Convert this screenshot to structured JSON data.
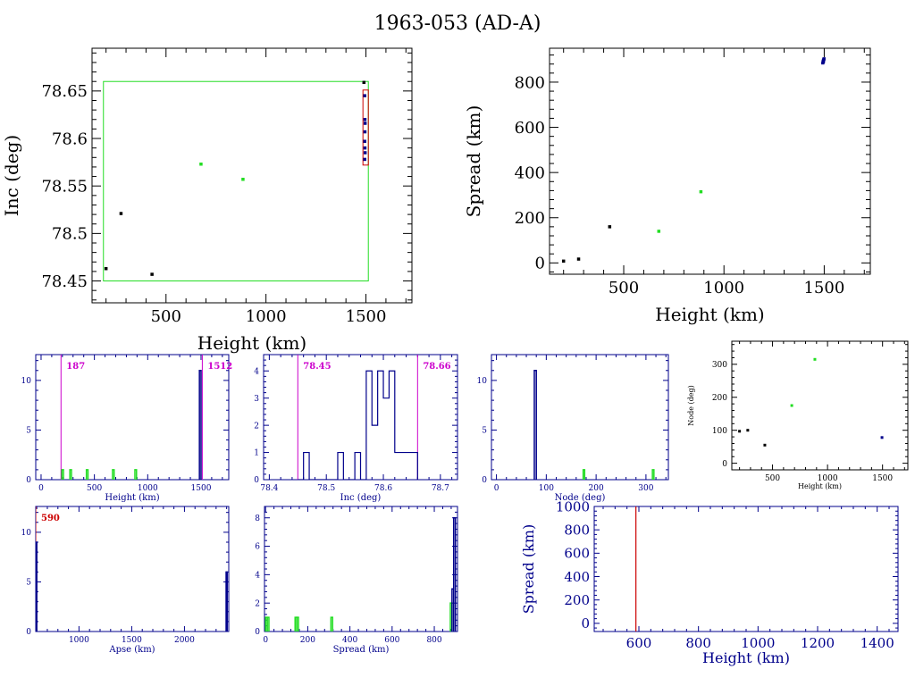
{
  "title": "1963-053 (AD-A)",
  "colors": {
    "black": "#000000",
    "green": "#22dd22",
    "blue": "#00008b",
    "magenta": "#cc00cc",
    "red": "#cc0000",
    "brightblue": "#0000ff"
  },
  "chart_data": [
    {
      "id": "inc-vs-height",
      "type": "scatter",
      "xlabel": "Height (km)",
      "ylabel": "Inc (deg)",
      "xlim": [
        130,
        1730
      ],
      "ylim": [
        78.427,
        78.695
      ],
      "xticks": [
        500,
        1000,
        1500
      ],
      "yticks": [
        78.45,
        78.5,
        78.55,
        78.6,
        78.65
      ],
      "ytick_labels": [
        "78.45",
        "78.5",
        "78.55",
        "78.6",
        "78.65"
      ],
      "series": [
        {
          "color": "black",
          "points": [
            [
              200,
              78.463
            ],
            [
              275,
              78.521
            ],
            [
              430,
              78.457
            ],
            [
              1490,
              78.659
            ]
          ]
        },
        {
          "color": "green",
          "points": [
            [
              675,
              78.573
            ],
            [
              885,
              78.557
            ]
          ]
        },
        {
          "color": "blue",
          "points": [
            [
              1494,
              78.645
            ],
            [
              1495,
              78.62
            ],
            [
              1496,
              78.616
            ],
            [
              1495,
              78.607
            ],
            [
              1494,
              78.597
            ],
            [
              1495,
              78.59
            ],
            [
              1496,
              78.585
            ],
            [
              1494,
              78.578
            ]
          ]
        }
      ],
      "boxes": [
        {
          "color": "green",
          "x": [
            187,
            1512
          ],
          "y": [
            78.45,
            78.66
          ]
        },
        {
          "color": "red",
          "x": [
            1485,
            1512
          ],
          "y": [
            78.572,
            78.651
          ]
        }
      ]
    },
    {
      "id": "spread-vs-height",
      "type": "scatter",
      "xlabel": "Height (km)",
      "ylabel": "Spread (km)",
      "xlim": [
        130,
        1730
      ],
      "ylim": [
        -50,
        950
      ],
      "xticks": [
        500,
        1000,
        1500
      ],
      "yticks": [
        0,
        200,
        400,
        600,
        800
      ],
      "series": [
        {
          "color": "black",
          "points": [
            [
              200,
              8
            ],
            [
              275,
              17
            ],
            [
              430,
              160
            ]
          ]
        },
        {
          "color": "green",
          "points": [
            [
              675,
              140
            ],
            [
              885,
              315
            ]
          ]
        },
        {
          "color": "blue",
          "points": [
            [
              1493,
              885
            ],
            [
              1495,
              893
            ],
            [
              1497,
              898
            ],
            [
              1499,
              903
            ],
            [
              1496,
              890
            ]
          ]
        }
      ]
    },
    {
      "id": "height-hist",
      "type": "bar",
      "xlabel": "Height (km)",
      "xlim": [
        -50,
        1760
      ],
      "ylim": [
        0,
        12.6
      ],
      "xticks": [
        0,
        500,
        1000,
        1500
      ],
      "yticks": [
        0,
        5,
        10
      ],
      "markers": [
        {
          "x": 187,
          "label": "187",
          "color": "magenta"
        },
        {
          "x": 1512,
          "label": "1512",
          "color": "magenta"
        }
      ],
      "series": [
        {
          "color": "green",
          "bars": [
            [
              195,
              210,
              1
            ],
            [
              270,
              285,
              1
            ],
            [
              425,
              440,
              1
            ],
            [
              670,
              685,
              1
            ],
            [
              880,
              895,
              1
            ]
          ]
        },
        {
          "color": "blue",
          "bars": [
            [
              1485,
              1500,
              11
            ]
          ]
        }
      ]
    },
    {
      "id": "inc-hist",
      "type": "bar",
      "xlabel": "Inc (deg)",
      "xlim": [
        78.39,
        78.73
      ],
      "ylim": [
        0,
        4.6
      ],
      "xticks": [
        78.4,
        78.5,
        78.6,
        78.7
      ],
      "yticks": [
        0,
        1,
        2,
        3,
        4
      ],
      "xtick_labels": [
        "78.4",
        "78.5",
        "78.6",
        "78.7"
      ],
      "markers": [
        {
          "x": 78.45,
          "label": "78.45",
          "color": "magenta"
        },
        {
          "x": 78.66,
          "label": "78.66",
          "color": "magenta"
        }
      ],
      "series": [
        {
          "color": "blue",
          "step": [
            [
              78.45,
              0
            ],
            [
              78.46,
              1
            ],
            [
              78.47,
              0
            ],
            [
              78.52,
              1
            ],
            [
              78.53,
              0
            ],
            [
              78.55,
              1
            ],
            [
              78.56,
              0
            ],
            [
              78.57,
              4
            ],
            [
              78.58,
              2
            ],
            [
              78.59,
              4
            ],
            [
              78.6,
              3
            ],
            [
              78.61,
              4
            ],
            [
              78.62,
              1
            ],
            [
              78.66,
              0
            ]
          ]
        }
      ]
    },
    {
      "id": "node-hist",
      "type": "bar",
      "xlabel": "Node (deg)",
      "xlim": [
        -10,
        345
      ],
      "ylim": [
        0,
        12.6
      ],
      "xticks": [
        0,
        100,
        200,
        300
      ],
      "yticks": [
        0,
        5,
        10
      ],
      "series": [
        {
          "color": "blue",
          "bars": [
            [
              76,
              80,
              11
            ]
          ]
        },
        {
          "color": "green",
          "bars": [
            [
              174,
              177,
              1
            ],
            [
              313,
              316,
              1
            ]
          ]
        }
      ]
    },
    {
      "id": "node-vs-height",
      "type": "scatter",
      "xlabel": "Height (km)",
      "ylabel": "Node (deg)",
      "xlim": [
        130,
        1730
      ],
      "ylim": [
        -20,
        370
      ],
      "xticks": [
        500,
        1000,
        1500
      ],
      "yticks": [
        0,
        100,
        200,
        300
      ],
      "series": [
        {
          "color": "black",
          "points": [
            [
              200,
              97
            ],
            [
              275,
              100
            ],
            [
              430,
              55
            ]
          ]
        },
        {
          "color": "green",
          "points": [
            [
              675,
              175
            ],
            [
              885,
              315
            ]
          ]
        },
        {
          "color": "blue",
          "points": [
            [
              1495,
              78
            ]
          ]
        }
      ]
    },
    {
      "id": "apse-hist",
      "type": "bar",
      "xlabel": "Apse (km)",
      "xlim": [
        590,
        2420
      ],
      "ylim": [
        0,
        12.6
      ],
      "xticks": [
        1000,
        1500,
        2000
      ],
      "yticks": [
        0,
        5,
        10
      ],
      "markers": [
        {
          "x": 590,
          "label": "590",
          "color": "red"
        }
      ],
      "series": [
        {
          "color": "blue",
          "bars": [
            [
              590,
              600,
              9
            ],
            [
              2395,
              2405,
              6
            ]
          ]
        }
      ]
    },
    {
      "id": "spread-hist",
      "type": "bar",
      "xlabel": "Spread (km)",
      "xlim": [
        -5,
        910
      ],
      "ylim": [
        0,
        8.8
      ],
      "xticks": [
        0,
        200,
        400,
        600,
        800
      ],
      "yticks": [
        0,
        2,
        4,
        6,
        8
      ],
      "series": [
        {
          "color": "green",
          "bars": [
            [
              0,
              8,
              1
            ],
            [
              8,
              16,
              1
            ],
            [
              140,
              148,
              1
            ],
            [
              148,
              156,
              1
            ],
            [
              310,
              318,
              1
            ],
            [
              876,
              884,
              2
            ]
          ]
        },
        {
          "color": "blue",
          "bars": [
            [
              884,
              892,
              3
            ],
            [
              892,
              900,
              8
            ]
          ]
        }
      ]
    },
    {
      "id": "spread-vs-height-zoom",
      "type": "line",
      "xlabel": "Height (km)",
      "ylabel": "Spread (km)",
      "xlim": [
        450,
        1470
      ],
      "ylim": [
        -70,
        1000
      ],
      "xticks": [
        600,
        800,
        1000,
        1200,
        1400
      ],
      "yticks": [
        0,
        200,
        400,
        600,
        800,
        1000
      ],
      "vline": {
        "x": 590,
        "color": "red"
      }
    }
  ]
}
